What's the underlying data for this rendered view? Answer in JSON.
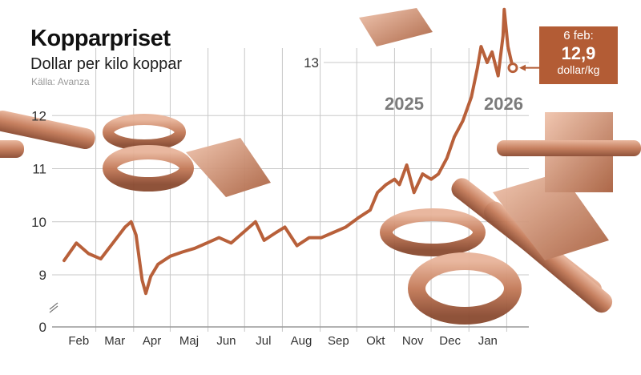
{
  "header": {
    "title": "Kopparpriset",
    "subtitle": "Dollar per kilo koppar",
    "source": "Källa: Avanza"
  },
  "callout": {
    "date": "6 feb:",
    "value": "12,9",
    "unit": "dollar/kg"
  },
  "year_labels": [
    "2025",
    "2026"
  ],
  "colors": {
    "line": "#b8603a",
    "callout": "#b35c35",
    "grid": "#c8c8c8",
    "year_label": "#7b7b7b"
  },
  "chart_data": {
    "type": "line",
    "title": "Kopparpriset",
    "subtitle": "Dollar per kilo koppar",
    "ylim": [
      0,
      14
    ],
    "y_axis_break": true,
    "yticks": [
      0,
      9,
      10,
      11,
      12,
      13
    ],
    "ytick_labels": [
      "0",
      "9",
      "10",
      "11",
      "12",
      "13"
    ],
    "xtick_labels": [
      "Feb",
      "Mar",
      "Apr",
      "Maj",
      "Jun",
      "Jul",
      "Aug",
      "Sep",
      "Okt",
      "Nov",
      "Dec",
      "Jan"
    ],
    "grid": true,
    "series": [
      {
        "x": [
          "2025-02-03",
          "2025-02-13",
          "2025-02-23",
          "2025-03-05",
          "2025-03-15",
          "2025-03-25",
          "2025-03-30",
          "2025-04-03",
          "2025-04-08",
          "2025-04-11",
          "2025-04-15",
          "2025-04-21",
          "2025-05-01",
          "2025-05-11",
          "2025-05-21",
          "2025-05-31",
          "2025-06-10",
          "2025-06-20",
          "2025-06-30",
          "2025-07-10",
          "2025-07-17",
          "2025-07-27",
          "2025-08-03",
          "2025-08-13",
          "2025-08-23",
          "2025-09-02",
          "2025-09-12",
          "2025-09-22",
          "2025-10-02",
          "2025-10-12",
          "2025-10-18",
          "2025-10-25",
          "2025-11-01",
          "2025-11-05",
          "2025-11-11",
          "2025-11-17",
          "2025-11-24",
          "2025-12-01",
          "2025-12-07",
          "2025-12-14",
          "2025-12-20",
          "2025-12-27",
          "2026-01-03",
          "2026-01-08",
          "2026-01-11",
          "2026-01-16",
          "2026-01-20",
          "2026-01-25",
          "2026-01-29",
          "2026-01-30",
          "2026-02-02",
          "2026-02-06"
        ],
        "y": [
          9.27,
          9.6,
          9.4,
          9.3,
          9.6,
          9.9,
          10.0,
          9.75,
          8.9,
          8.65,
          8.97,
          9.2,
          9.35,
          9.43,
          9.5,
          9.6,
          9.7,
          9.6,
          9.8,
          10.0,
          9.65,
          9.8,
          9.9,
          9.55,
          9.7,
          9.7,
          9.8,
          9.9,
          10.07,
          10.22,
          10.55,
          10.7,
          10.8,
          10.7,
          11.07,
          10.55,
          10.9,
          10.8,
          10.9,
          11.2,
          11.6,
          11.9,
          12.35,
          12.9,
          13.3,
          13.0,
          13.2,
          12.75,
          13.5,
          14.0,
          13.3,
          12.9
        ]
      }
    ],
    "annotation": {
      "date": "2026-02-06",
      "value": 12.9,
      "text": "6 feb: 12,9 dollar/kg"
    }
  }
}
